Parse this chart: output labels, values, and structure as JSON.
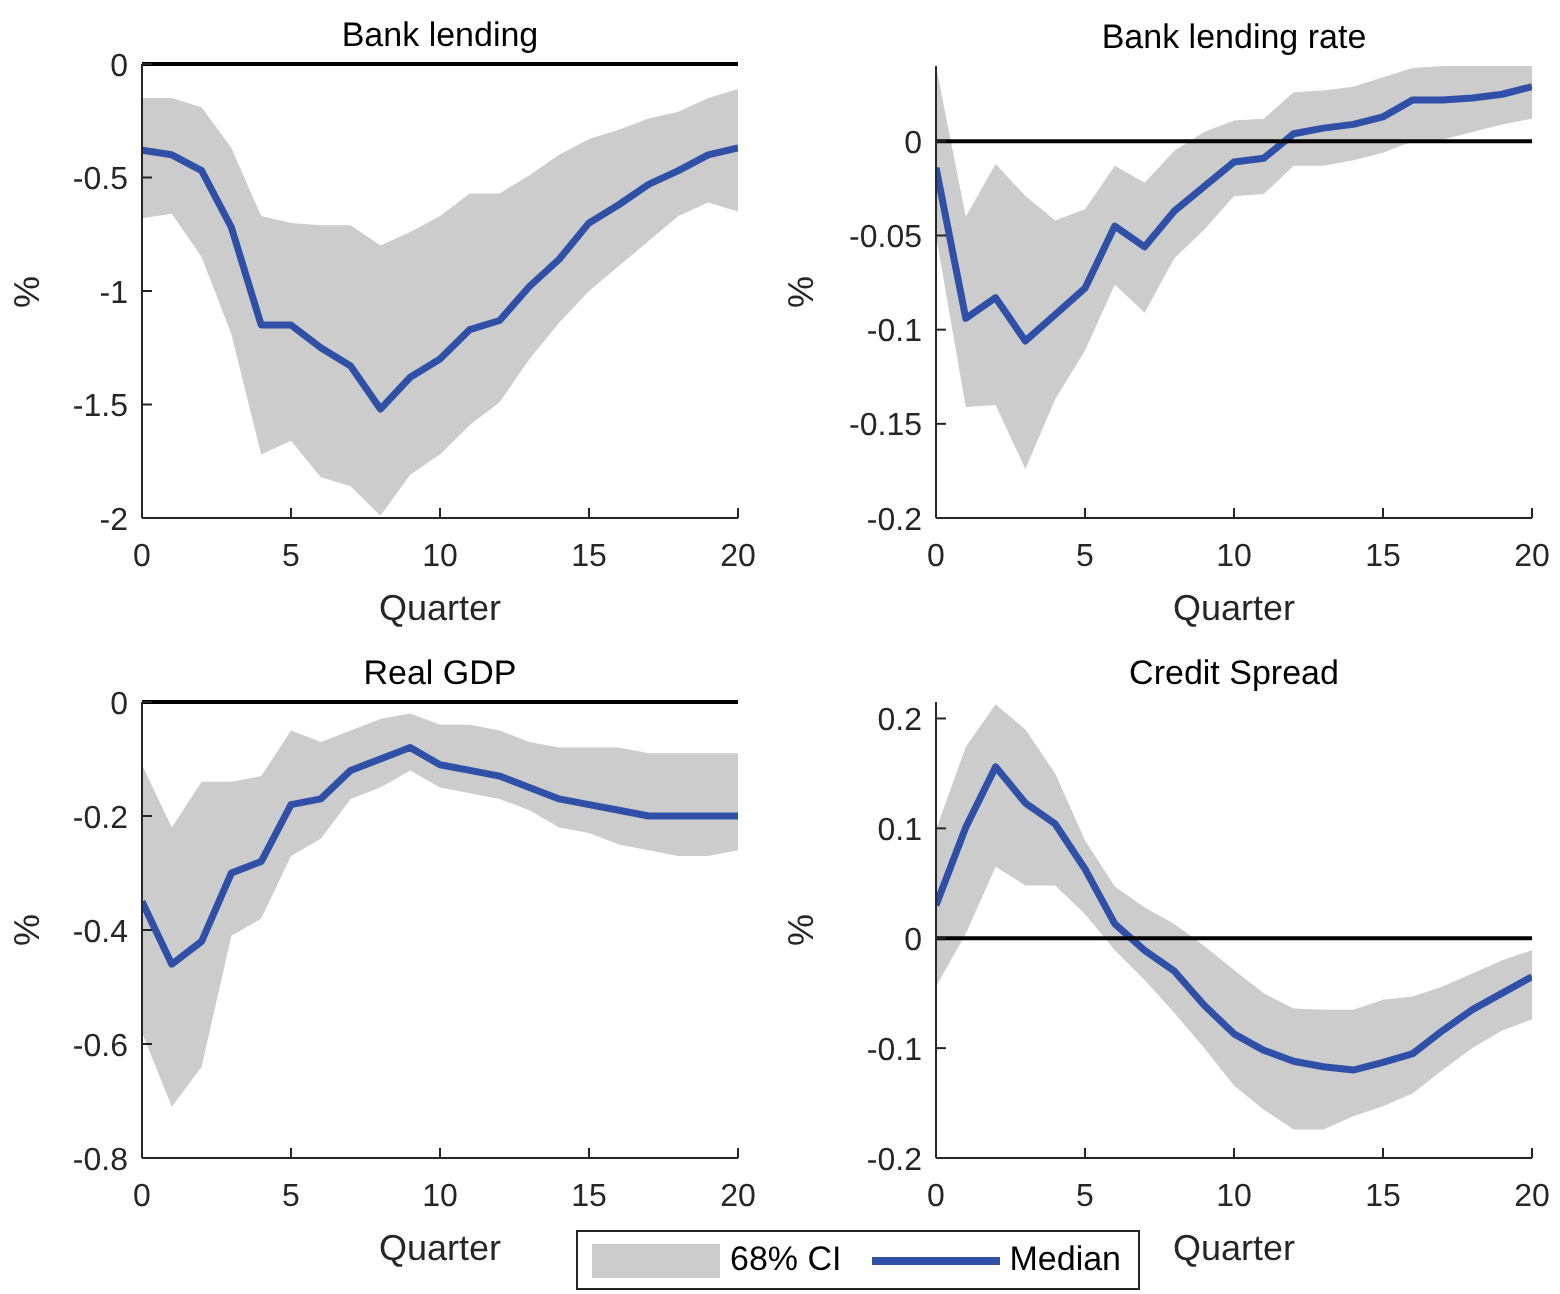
{
  "chart_data": [
    {
      "type": "line",
      "title": "Bank lending",
      "xlabel": "Quarter",
      "ylabel": "%",
      "x": [
        0,
        1,
        2,
        3,
        4,
        5,
        6,
        7,
        8,
        9,
        10,
        11,
        12,
        13,
        14,
        15,
        16,
        17,
        18,
        19,
        20
      ],
      "xlim": [
        0,
        20
      ],
      "xticks": [
        0,
        5,
        10,
        15,
        20
      ],
      "ylim": [
        -2,
        0
      ],
      "yticks": [
        -2,
        -1.5,
        -1,
        -0.5,
        0
      ],
      "series": [
        {
          "color": "#3050a8",
          "values": [
            -0.38,
            -0.4,
            -0.47,
            -0.72,
            -1.15,
            -1.15,
            -1.25,
            -1.33,
            -1.52,
            -1.38,
            -1.3,
            -1.17,
            -1.13,
            -0.98,
            -0.86,
            -0.7,
            -0.62,
            -0.53,
            -0.47,
            -0.4,
            -0.37
          ],
          "lower": [
            -0.68,
            -0.66,
            -0.85,
            -1.19,
            -1.72,
            -1.66,
            -1.82,
            -1.86,
            -1.99,
            -1.81,
            -1.72,
            -1.59,
            -1.49,
            -1.3,
            -1.14,
            -1.0,
            -0.89,
            -0.78,
            -0.67,
            -0.61,
            -0.65
          ],
          "upper": [
            -0.15,
            -0.15,
            -0.19,
            -0.37,
            -0.67,
            -0.7,
            -0.71,
            -0.71,
            -0.8,
            -0.74,
            -0.67,
            -0.57,
            -0.57,
            -0.49,
            -0.4,
            -0.33,
            -0.29,
            -0.24,
            -0.21,
            -0.15,
            -0.11
          ]
        }
      ],
      "ref_lines": [
        {
          "axis": "y",
          "value": 0,
          "color": "#000000"
        }
      ]
    },
    {
      "type": "line",
      "title": "Bank lending rate",
      "xlabel": "Quarter",
      "ylabel": "%",
      "x": [
        0,
        1,
        2,
        3,
        4,
        5,
        6,
        7,
        8,
        9,
        10,
        11,
        12,
        13,
        14,
        15,
        16,
        17,
        18,
        19,
        20
      ],
      "xlim": [
        0,
        20
      ],
      "xticks": [
        0,
        5,
        10,
        15,
        20
      ],
      "ylim": [
        -0.2,
        0.04
      ],
      "yticks": [
        -0.2,
        -0.15,
        -0.1,
        -0.05,
        0
      ],
      "series": [
        {
          "color": "#3050a8",
          "values": [
            -0.014,
            -0.094,
            -0.083,
            -0.106,
            -0.092,
            -0.078,
            -0.045,
            -0.056,
            -0.037,
            -0.024,
            -0.011,
            -0.009,
            0.004,
            0.007,
            0.009,
            0.013,
            0.022,
            0.022,
            0.023,
            0.025,
            0.029
          ],
          "lower": [
            -0.05,
            -0.141,
            -0.14,
            -0.174,
            -0.137,
            -0.111,
            -0.076,
            -0.091,
            -0.062,
            -0.047,
            -0.029,
            -0.028,
            -0.013,
            -0.013,
            -0.01,
            -0.006,
            0.0,
            0.001,
            0.005,
            0.009,
            0.012
          ],
          "upper": [
            0.04,
            -0.04,
            -0.012,
            -0.029,
            -0.042,
            -0.036,
            -0.013,
            -0.022,
            -0.005,
            0.005,
            0.011,
            0.012,
            0.026,
            0.027,
            0.029,
            0.034,
            0.039,
            0.04,
            0.04,
            0.04,
            0.04
          ]
        }
      ],
      "ref_lines": [
        {
          "axis": "y",
          "value": 0,
          "color": "#000000"
        }
      ]
    },
    {
      "type": "line",
      "title": "Real GDP",
      "xlabel": "Quarter",
      "ylabel": "%",
      "x": [
        0,
        1,
        2,
        3,
        4,
        5,
        6,
        7,
        8,
        9,
        10,
        11,
        12,
        13,
        14,
        15,
        16,
        17,
        18,
        19,
        20
      ],
      "xlim": [
        0,
        20
      ],
      "xticks": [
        0,
        5,
        10,
        15,
        20
      ],
      "ylim": [
        -0.8,
        0
      ],
      "yticks": [
        -0.8,
        -0.6,
        -0.4,
        -0.2,
        0
      ],
      "series": [
        {
          "color": "#3050a8",
          "values": [
            -0.35,
            -0.46,
            -0.42,
            -0.3,
            -0.28,
            -0.18,
            -0.17,
            -0.12,
            -0.1,
            -0.08,
            -0.11,
            -0.12,
            -0.13,
            -0.15,
            -0.17,
            -0.18,
            -0.19,
            -0.2,
            -0.2,
            -0.2,
            -0.2
          ],
          "lower": [
            -0.58,
            -0.71,
            -0.64,
            -0.41,
            -0.38,
            -0.27,
            -0.24,
            -0.17,
            -0.15,
            -0.12,
            -0.15,
            -0.16,
            -0.17,
            -0.19,
            -0.22,
            -0.23,
            -0.25,
            -0.26,
            -0.27,
            -0.27,
            -0.26
          ],
          "upper": [
            -0.11,
            -0.22,
            -0.14,
            -0.14,
            -0.13,
            -0.05,
            -0.07,
            -0.05,
            -0.03,
            -0.02,
            -0.04,
            -0.04,
            -0.05,
            -0.07,
            -0.08,
            -0.08,
            -0.08,
            -0.09,
            -0.09,
            -0.09,
            -0.09
          ]
        }
      ],
      "ref_lines": [
        {
          "axis": "y",
          "value": 0,
          "color": "#000000"
        }
      ]
    },
    {
      "type": "line",
      "title": "Credit Spread",
      "xlabel": "Quarter",
      "ylabel": "%",
      "x": [
        0,
        1,
        2,
        3,
        4,
        5,
        6,
        7,
        8,
        9,
        10,
        11,
        12,
        13,
        14,
        15,
        16,
        17,
        18,
        19,
        20
      ],
      "xlim": [
        0,
        20
      ],
      "xticks": [
        0,
        5,
        10,
        15,
        20
      ],
      "ylim": [
        -0.2,
        0.215
      ],
      "yticks": [
        -0.2,
        -0.1,
        0,
        0.1,
        0.2
      ],
      "series": [
        {
          "name": "Median",
          "color": "#3050a8",
          "values": [
            0.03,
            0.101,
            0.156,
            0.123,
            0.104,
            0.063,
            0.013,
            -0.011,
            -0.03,
            -0.061,
            -0.087,
            -0.102,
            -0.112,
            -0.117,
            -0.12,
            -0.113,
            -0.105,
            -0.084,
            -0.065,
            -0.05,
            -0.035
          ],
          "lower": [
            -0.044,
            0.004,
            0.065,
            0.048,
            0.048,
            0.022,
            -0.011,
            -0.038,
            -0.068,
            -0.1,
            -0.134,
            -0.156,
            -0.174,
            -0.174,
            -0.162,
            -0.153,
            -0.141,
            -0.12,
            -0.1,
            -0.084,
            -0.074
          ],
          "upper": [
            0.099,
            0.174,
            0.213,
            0.19,
            0.15,
            0.089,
            0.047,
            0.028,
            0.013,
            -0.007,
            -0.029,
            -0.05,
            -0.064,
            -0.065,
            -0.065,
            -0.056,
            -0.053,
            -0.044,
            -0.032,
            -0.02,
            -0.011
          ]
        }
      ],
      "ref_lines": [
        {
          "axis": "y",
          "value": 0,
          "color": "#000000"
        }
      ],
      "legend": "bottom",
      "annotations": [
        "68% CI"
      ]
    }
  ]
}
